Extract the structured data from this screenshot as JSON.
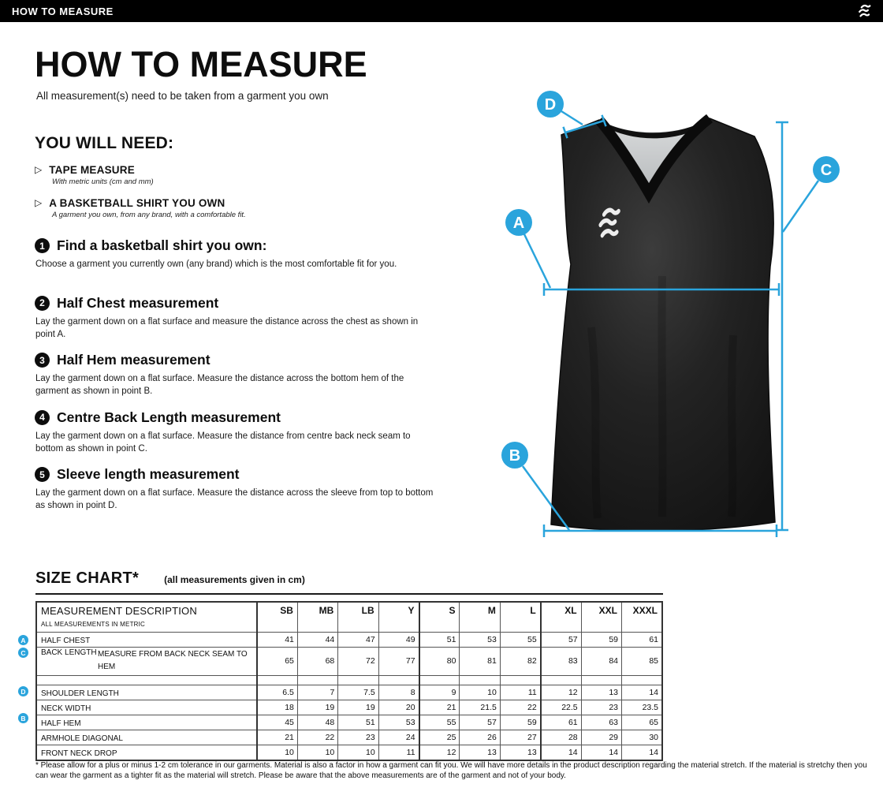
{
  "colors": {
    "accent": "#2aa4dc"
  },
  "header_bar": {
    "title": "HOW TO MEASURE"
  },
  "intro": {
    "title": "HOW TO MEASURE",
    "subtitle": "All measurement(s) need to be taken from a garment you own"
  },
  "you_will_need": {
    "heading": "YOU WILL NEED:",
    "items": [
      {
        "title": "TAPE MEASURE",
        "detail": "With metric units (cm and mm)"
      },
      {
        "title": "A BASKETBALL SHIRT YOU OWN",
        "detail": "A garment you own, from any brand, with a comfortable fit."
      }
    ]
  },
  "steps": [
    {
      "num": "1",
      "title": "Find a basketball shirt you own:",
      "body": "Choose a garment you currently own (any brand) which is the most comfortable fit for you."
    },
    {
      "num": "2",
      "title": "Half Chest measurement",
      "body": "Lay the garment down on a flat surface and measure the distance across the chest as shown in point A."
    },
    {
      "num": "3",
      "title": "Half Hem measurement",
      "body": "Lay the garment down on a flat surface. Measure the distance across the bottom hem of the garment as shown in point B."
    },
    {
      "num": "4",
      "title": "Centre Back Length measurement",
      "body": "Lay the garment down on a flat surface. Measure the distance from centre back neck seam to bottom as shown in point C."
    },
    {
      "num": "5",
      "title": "Sleeve length measurement",
      "body": "Lay the garment down on a flat surface. Measure the distance across the sleeve from top to bottom as shown in point D."
    }
  ],
  "annotations": {
    "a": "A",
    "b": "B",
    "c": "C",
    "d": "D"
  },
  "size_chart": {
    "title": "SIZE CHART*",
    "units_note": "(all measurements given in cm)",
    "header": {
      "description": "MEASUREMENT DESCRIPTION",
      "sub": "ALL MEASUREMENTS IN METRIC",
      "sizes": [
        "SB",
        "MB",
        "LB",
        "Y",
        "S",
        "M",
        "L",
        "XL",
        "XXL",
        "XXXL"
      ]
    },
    "rows": [
      {
        "badge": "A",
        "label": "HALF CHEST",
        "values": [
          41,
          44,
          47,
          49,
          51,
          53,
          55,
          57,
          59,
          61
        ]
      },
      {
        "badge": "C",
        "label": "BACK LENGTH",
        "note": "MEASURE FROM BACK NECK SEAM TO HEM",
        "values": [
          65,
          68,
          72,
          77,
          80,
          81,
          82,
          83,
          84,
          85
        ]
      },
      {
        "spacer": true
      },
      {
        "badge": "D",
        "label": "SHOULDER LENGTH",
        "values": [
          6.5,
          7,
          7.5,
          8,
          9,
          10,
          11,
          12,
          13,
          14
        ]
      },
      {
        "label": "NECK WIDTH",
        "values": [
          18,
          19,
          19,
          20,
          21,
          21.5,
          22,
          22.5,
          23,
          23.5
        ]
      },
      {
        "badge": "B",
        "label": "HALF HEM",
        "values": [
          45,
          48,
          51,
          53,
          55,
          57,
          59,
          61,
          63,
          65
        ]
      },
      {
        "label": "ARMHOLE DIAGONAL",
        "values": [
          21,
          22,
          23,
          24,
          25,
          26,
          27,
          28,
          29,
          30
        ]
      },
      {
        "label": "FRONT NECK DROP",
        "values": [
          10,
          10,
          10,
          11,
          12,
          13,
          13,
          14,
          14,
          14
        ]
      }
    ]
  },
  "footnote": "* Please allow for a plus or minus 1-2 cm tolerance in our garments. Material is also a factor in how a garment can fit you. We will have more details in the product description regarding the material stretch.  If the material is stretchy then you can wear the garment as a tighter fit as the material will stretch.  Please be aware that the above measurements are of the garment and not of your body."
}
